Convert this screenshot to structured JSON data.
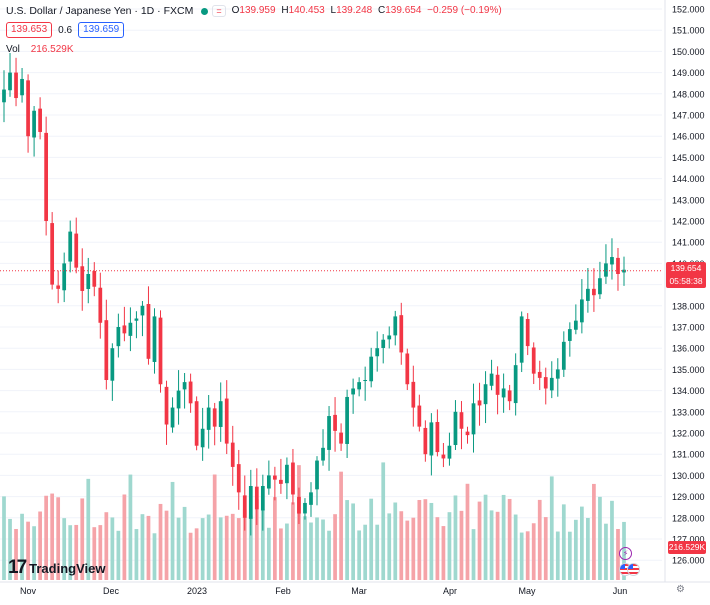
{
  "header": {
    "title": "U.S. Dollar / Japanese Yen · 1D · FXCM",
    "eq_label": "=",
    "ohlc": [
      {
        "label": "O",
        "value": "139.959"
      },
      {
        "label": "H",
        "value": "140.453"
      },
      {
        "label": "L",
        "value": "139.248"
      },
      {
        "label": "C",
        "value": "139.654"
      },
      {
        "label": "",
        "value": "−0.259 (−0.19%)"
      }
    ]
  },
  "quote": {
    "sell": "139.653",
    "spread": "0.6",
    "buy": "139.659"
  },
  "volume": {
    "label": "Vol",
    "value": "216.529K"
  },
  "price_tag": {
    "price": "139.654",
    "countdown": "05:58:38"
  },
  "volume_tag": "216.529K",
  "branding": {
    "logo_mark": "17",
    "name": "TradingView"
  },
  "icons": {
    "flash": "lightning-icon",
    "flags": "currency-flags-icon",
    "settings": "gear-icon"
  },
  "colors": {
    "up": "#089981",
    "down": "#f23645",
    "vol_up": "#9fd8cf",
    "vol_down": "#f5a3a8",
    "grid": "#f0f3fa",
    "axis_text": "#131722"
  },
  "chart_data": {
    "type": "candlestick",
    "y_axis": {
      "position": "right",
      "ylim": [
        125.5,
        152.3
      ],
      "ticks": [
        "152.000",
        "151.000",
        "150.000",
        "149.000",
        "148.000",
        "147.000",
        "146.000",
        "145.000",
        "144.000",
        "143.000",
        "142.000",
        "141.000",
        "140.000",
        "139.000",
        "138.000",
        "137.000",
        "136.000",
        "135.000",
        "134.000",
        "133.000",
        "132.000",
        "131.000",
        "130.000",
        "129.000",
        "128.000",
        "127.000",
        "126.000"
      ]
    },
    "x_axis": {
      "labels": [
        "Nov",
        "Dec",
        "2023",
        "Feb",
        "Mar",
        "Apr",
        "May",
        "Jun"
      ]
    },
    "anchors": [
      148.2,
      149.0,
      147.8,
      148.7,
      146.0,
      147.2,
      146.2,
      142.0,
      139.0,
      138.8,
      140.0,
      141.5,
      139.8,
      138.7,
      139.5,
      138.9,
      137.2,
      134.5,
      136.0,
      137.0,
      136.7,
      137.2,
      137.4,
      138.0,
      135.5,
      137.5,
      134.3,
      132.4,
      133.2,
      134.0,
      134.4,
      133.4,
      131.4,
      132.2,
      133.2,
      132.3,
      133.5,
      131.5,
      130.4,
      129.2,
      128.0,
      129.5,
      128.4,
      129.5,
      130.0,
      129.8,
      129.6,
      130.5,
      129.1,
      128.2,
      128.7,
      129.2,
      130.7,
      131.3,
      132.8,
      132.1,
      131.5,
      133.7,
      134.1,
      134.4,
      134.5,
      135.6,
      136.0,
      136.4,
      136.6,
      137.5,
      135.8,
      134.3,
      133.2,
      132.3,
      131.0,
      132.5,
      131.1,
      130.8,
      131.4,
      133.0,
      132.2,
      131.9,
      133.4,
      133.3,
      134.3,
      134.8,
      133.8,
      134.1,
      133.5,
      135.2,
      137.5,
      136.1,
      134.8,
      134.6,
      134.1,
      134.6,
      135.0,
      136.3,
      136.9,
      137.3,
      138.3,
      138.8,
      138.5,
      139.3,
      140.0,
      140.3,
      139.5,
      139.7
    ],
    "volume_max_k": 520
  }
}
